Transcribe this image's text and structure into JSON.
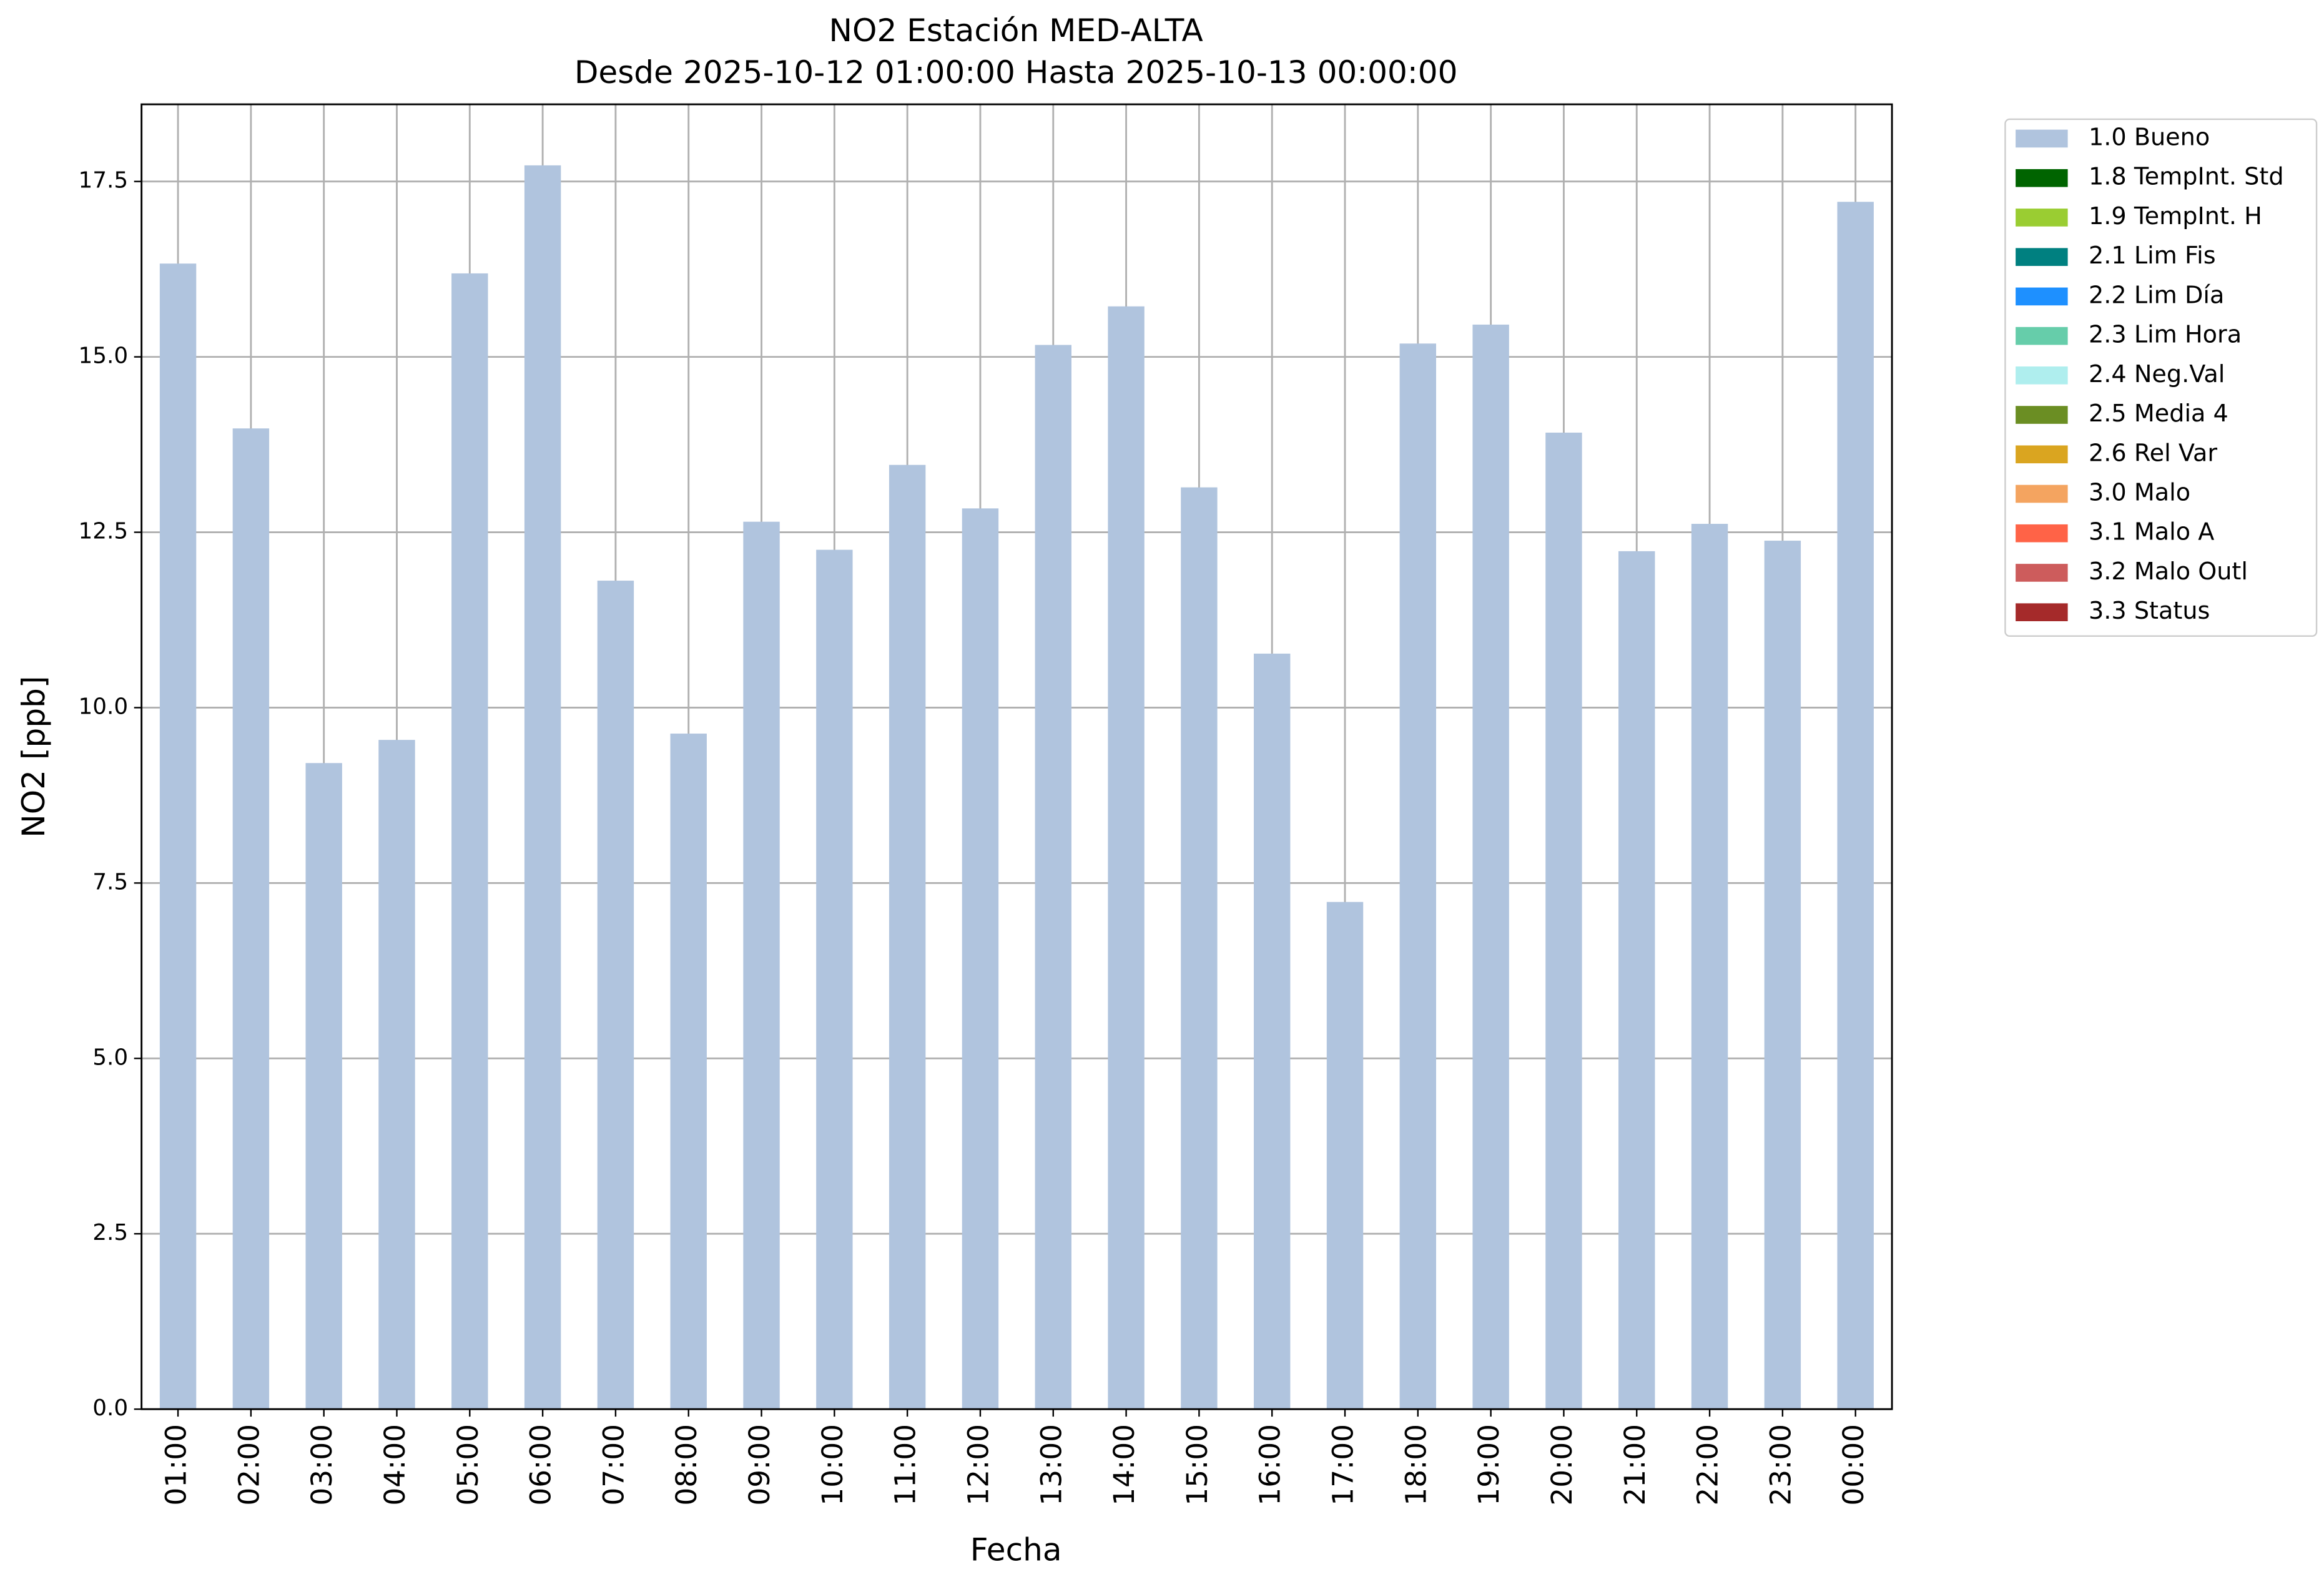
{
  "chart_data": {
    "type": "bar",
    "stacked": true,
    "title": "NO2 Estación MED-ALTA",
    "subtitle": "Desde 2025-10-12 01:00:00 Hasta 2025-10-13 00:00:00",
    "x_label": "Fecha",
    "y_label": "NO2 [ppb]",
    "categories": [
      "01:00",
      "02:00",
      "03:00",
      "04:00",
      "05:00",
      "06:00",
      "07:00",
      "08:00",
      "09:00",
      "10:00",
      "11:00",
      "12:00",
      "13:00",
      "14:00",
      "15:00",
      "16:00",
      "17:00",
      "18:00",
      "19:00",
      "20:00",
      "21:00",
      "22:00",
      "23:00",
      "00:00"
    ],
    "series": [
      {
        "name": "1.0 Bueno",
        "color": "#b0c4de",
        "values": [
          16.33,
          13.98,
          9.21,
          9.54,
          16.19,
          17.73,
          11.81,
          9.63,
          12.65,
          12.25,
          13.46,
          12.84,
          15.17,
          15.72,
          13.14,
          10.77,
          7.23,
          15.19,
          15.46,
          13.92,
          12.23,
          12.62,
          12.38,
          17.21
        ]
      },
      {
        "name": "1.8 TempInt. Std",
        "color": "#006400",
        "values": [
          0,
          0,
          0,
          0,
          0,
          0,
          0,
          0,
          0,
          0,
          0,
          0,
          0,
          0,
          0,
          0,
          0,
          0,
          0,
          0,
          0,
          0,
          0,
          0
        ]
      },
      {
        "name": "1.9 TempInt. H",
        "color": "#9acd32",
        "values": [
          0,
          0,
          0,
          0,
          0,
          0,
          0,
          0,
          0,
          0,
          0,
          0,
          0,
          0,
          0,
          0,
          0,
          0,
          0,
          0,
          0,
          0,
          0,
          0
        ]
      },
      {
        "name": "2.1 Lim Fis",
        "color": "#008080",
        "values": [
          0,
          0,
          0,
          0,
          0,
          0,
          0,
          0,
          0,
          0,
          0,
          0,
          0,
          0,
          0,
          0,
          0,
          0,
          0,
          0,
          0,
          0,
          0,
          0
        ]
      },
      {
        "name": "2.2 Lim Día",
        "color": "#1e90ff",
        "values": [
          0,
          0,
          0,
          0,
          0,
          0,
          0,
          0,
          0,
          0,
          0,
          0,
          0,
          0,
          0,
          0,
          0,
          0,
          0,
          0,
          0,
          0,
          0,
          0
        ]
      },
      {
        "name": "2.3 Lim Hora",
        "color": "#66cdaa",
        "values": [
          0,
          0,
          0,
          0,
          0,
          0,
          0,
          0,
          0,
          0,
          0,
          0,
          0,
          0,
          0,
          0,
          0,
          0,
          0,
          0,
          0,
          0,
          0,
          0
        ]
      },
      {
        "name": "2.4 Neg.Val",
        "color": "#afeeee",
        "values": [
          0,
          0,
          0,
          0,
          0,
          0,
          0,
          0,
          0,
          0,
          0,
          0,
          0,
          0,
          0,
          0,
          0,
          0,
          0,
          0,
          0,
          0,
          0,
          0
        ]
      },
      {
        "name": "2.5 Media 4",
        "color": "#6b8e23",
        "values": [
          0,
          0,
          0,
          0,
          0,
          0,
          0,
          0,
          0,
          0,
          0,
          0,
          0,
          0,
          0,
          0,
          0,
          0,
          0,
          0,
          0,
          0,
          0,
          0
        ]
      },
      {
        "name": "2.6 Rel Var",
        "color": "#daa520",
        "values": [
          0,
          0,
          0,
          0,
          0,
          0,
          0,
          0,
          0,
          0,
          0,
          0,
          0,
          0,
          0,
          0,
          0,
          0,
          0,
          0,
          0,
          0,
          0,
          0
        ]
      },
      {
        "name": "3.0 Malo",
        "color": "#f4a460",
        "values": [
          0,
          0,
          0,
          0,
          0,
          0,
          0,
          0,
          0,
          0,
          0,
          0,
          0,
          0,
          0,
          0,
          0,
          0,
          0,
          0,
          0,
          0,
          0,
          0
        ]
      },
      {
        "name": "3.1 Malo A",
        "color": "#ff6347",
        "values": [
          0,
          0,
          0,
          0,
          0,
          0,
          0,
          0,
          0,
          0,
          0,
          0,
          0,
          0,
          0,
          0,
          0,
          0,
          0,
          0,
          0,
          0,
          0,
          0
        ]
      },
      {
        "name": "3.2 Malo Outl",
        "color": "#cd5c5c",
        "values": [
          0,
          0,
          0,
          0,
          0,
          0,
          0,
          0,
          0,
          0,
          0,
          0,
          0,
          0,
          0,
          0,
          0,
          0,
          0,
          0,
          0,
          0,
          0,
          0
        ]
      },
      {
        "name": "3.3 Status",
        "color": "#a52a2a",
        "values": [
          0,
          0,
          0,
          0,
          0,
          0,
          0,
          0,
          0,
          0,
          0,
          0,
          0,
          0,
          0,
          0,
          0,
          0,
          0,
          0,
          0,
          0,
          0,
          0
        ]
      }
    ],
    "ylim": [
      0,
      18.6
    ],
    "yticks": [
      {
        "value": 0,
        "label": "0.0"
      },
      2.5,
      {
        "value": 5,
        "label": "5.0"
      },
      7.5,
      {
        "value": 10,
        "label": "10.0"
      },
      12.5,
      {
        "value": 15,
        "label": "15.0"
      },
      17.5
    ],
    "grid": true,
    "legend": "outside-upper-right"
  }
}
